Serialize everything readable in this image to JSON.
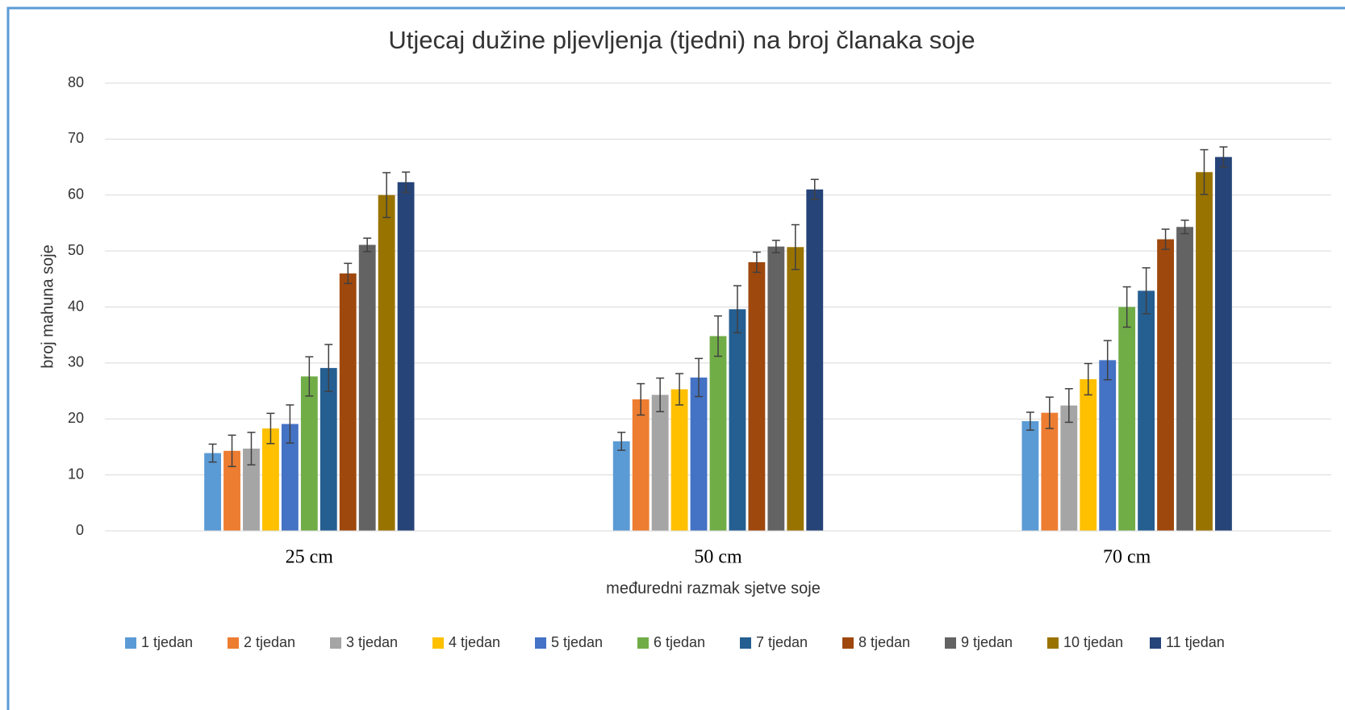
{
  "chart_data": {
    "type": "bar",
    "title": "Utjecaj dužine plјevljenja (tjedni) na broj članaka soje",
    "x_label": "međuredni razmak sjetve soje",
    "y_label": "broj mahuna soje",
    "categories": [
      "25 cm",
      "50 cm",
      "70 cm"
    ],
    "ylim": [
      0,
      80
    ],
    "yticks": [
      0,
      10,
      20,
      30,
      40,
      50,
      60,
      70,
      80
    ],
    "grid": true,
    "legend": "bottom",
    "series": [
      {
        "name": "1 tjedan",
        "color": "#5b9bd5",
        "values": [
          13.9,
          16,
          19.6
        ],
        "errors": [
          1.6,
          1.6,
          1.6
        ]
      },
      {
        "name": "2 tjedan",
        "color": "#ed7d31",
        "values": [
          14.3,
          23.5,
          21.1
        ],
        "errors": [
          2.8,
          2.8,
          2.8
        ]
      },
      {
        "name": "3 tjedan",
        "color": "#a5a5a5",
        "values": [
          14.7,
          24.3,
          22.4
        ],
        "errors": [
          2.9,
          3,
          3
        ]
      },
      {
        "name": "4 tjedan",
        "color": "#ffc000",
        "values": [
          18.3,
          25.3,
          27.1
        ],
        "errors": [
          2.7,
          2.8,
          2.8
        ]
      },
      {
        "name": "5 tjedan",
        "color": "#4472c4",
        "values": [
          19.1,
          27.4,
          30.5
        ],
        "errors": [
          3.4,
          3.4,
          3.5
        ]
      },
      {
        "name": "6 tjedan",
        "color": "#70ad47",
        "values": [
          27.6,
          34.8,
          40
        ],
        "errors": [
          3.5,
          3.6,
          3.6
        ]
      },
      {
        "name": "7 tjedan",
        "color": "#255e91",
        "values": [
          29.1,
          39.6,
          42.9
        ],
        "errors": [
          4.2,
          4.2,
          4.1
        ]
      },
      {
        "name": "8 tjedan",
        "color": "#9e480e",
        "values": [
          46,
          48,
          52.1
        ],
        "errors": [
          1.8,
          1.8,
          1.8
        ]
      },
      {
        "name": "9 tjedan",
        "color": "#636363",
        "values": [
          51.1,
          50.8,
          54.3
        ],
        "errors": [
          1.2,
          1.1,
          1.2
        ]
      },
      {
        "name": "10 tjedan",
        "color": "#997300",
        "values": [
          60,
          50.7,
          64.1
        ],
        "errors": [
          4,
          4,
          4
        ]
      },
      {
        "name": "11 tjedan",
        "color": "#264478",
        "values": [
          62.3,
          61,
          66.8
        ],
        "errors": [
          1.8,
          1.8,
          1.8
        ]
      }
    ]
  }
}
